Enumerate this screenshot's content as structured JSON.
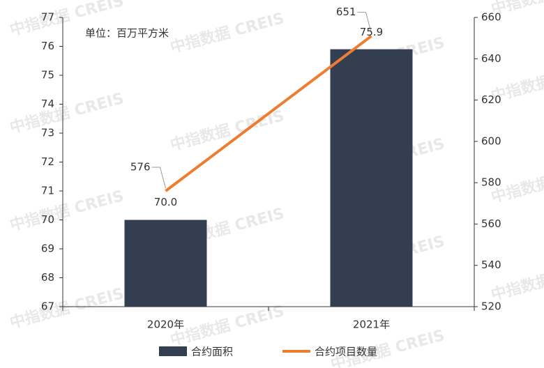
{
  "watermark": "中指数据 CREIS",
  "chart_data": {
    "type": "bar",
    "annotation": "单位：百万平方米",
    "categories": [
      "2020年",
      "2021年"
    ],
    "series": [
      {
        "name": "合约面积",
        "type": "bar",
        "color": "#333f50",
        "values": [
          70.0,
          75.9
        ],
        "value_labels": [
          "70.0",
          "75.9"
        ]
      },
      {
        "name": "合约项目数量",
        "type": "line",
        "color": "#ed7d31",
        "axis": "y2",
        "values": [
          576,
          651
        ]
      }
    ],
    "ylim": [
      67,
      77
    ],
    "yticks": [
      67,
      68,
      69,
      70,
      71,
      72,
      73,
      74,
      75,
      76,
      77
    ],
    "y2lim": [
      520,
      660
    ],
    "y2ticks": [
      520,
      540,
      560,
      580,
      600,
      620,
      640,
      660
    ],
    "legend": "bottom"
  }
}
